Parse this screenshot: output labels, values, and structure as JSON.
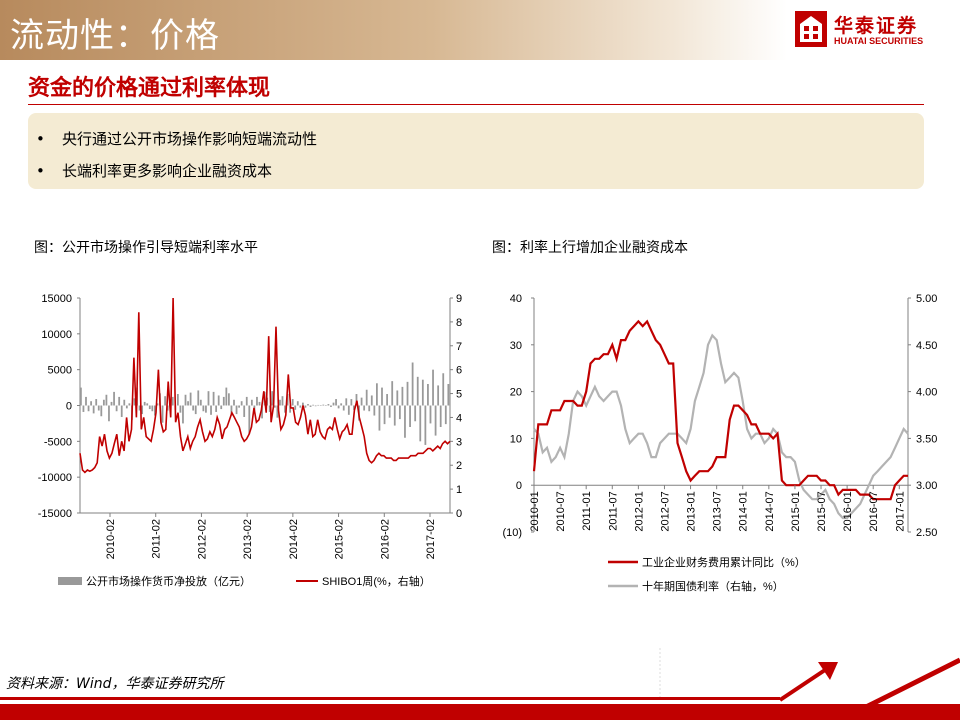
{
  "header": {
    "title": "流动性：价格"
  },
  "logo": {
    "name": "华泰证券",
    "sub": "HUATAI SECURITIES"
  },
  "section": {
    "heading": "资金的价格通过利率体现"
  },
  "bullets": [
    {
      "text": "央行通过公开市场操作影响短端流动性"
    },
    {
      "text": "长端利率更多影响企业融资成本"
    }
  ],
  "figures": [
    {
      "title": "图：公开市场操作引导短端利率水平"
    },
    {
      "title": "图：利率上行增加企业融资成本"
    }
  ],
  "footer": {
    "source": "资料来源：Wind，华泰证券研究所"
  },
  "colors": {
    "brand_red": "#c00000",
    "series_gray": "#999999",
    "series_light_gray": "#b3b3b3"
  },
  "chart_data": [
    {
      "type": "bar",
      "title": "图：公开市场操作引导短端利率水平",
      "x_ticks": [
        "2010-02",
        "2011-02",
        "2012-02",
        "2013-02",
        "2014-02",
        "2015-02",
        "2016-02",
        "2017-02"
      ],
      "ylim_left": [
        -15000,
        15000
      ],
      "yticks_left": [
        15000,
        10000,
        5000,
        0,
        -5000,
        -10000,
        -15000
      ],
      "ylim_right": [
        0,
        9
      ],
      "yticks_right": [
        9,
        8,
        7,
        6,
        5,
        4,
        3,
        2,
        1,
        0
      ],
      "series": [
        {
          "name": "公开市场操作货币净投放（亿元）",
          "type": "bar",
          "axis": "left",
          "color": "#999999",
          "values": [
            2500,
            -900,
            1200,
            -800,
            600,
            -1100,
            900,
            -700,
            -1500,
            800,
            1500,
            -2200,
            500,
            1900,
            -800,
            1200,
            -1600,
            800,
            -400,
            300,
            -2000,
            1000,
            2500,
            -700,
            -1200,
            500,
            300,
            -500,
            -800,
            -1400,
            300,
            1700,
            -2400,
            1300,
            -700,
            800,
            1200,
            -600,
            1600,
            -1000,
            -2500,
            1500,
            600,
            1800,
            -700,
            -1200,
            2100,
            800,
            -800,
            -1000,
            2000,
            -1300,
            1900,
            -900,
            1400,
            -500,
            1200,
            2500,
            1700,
            -1400,
            800,
            -1200,
            -300,
            600,
            -1600,
            1200,
            -4000,
            800,
            -700,
            1200,
            500,
            -1800,
            1900,
            1100,
            -900,
            2000,
            -300,
            -1700,
            800,
            1300,
            -1000,
            1600,
            -1000,
            900,
            -600,
            600,
            -300,
            400,
            -300,
            200,
            -200,
            100,
            -100,
            80,
            -60,
            120,
            60,
            200,
            -200,
            400,
            900,
            -400,
            300,
            -700,
            1000,
            -1300,
            900,
            -600,
            1600,
            -2100,
            1100,
            -700,
            2200,
            -800,
            1400,
            -1400,
            3100,
            -3500,
            2500,
            -2600,
            1600,
            -1700,
            3400,
            -2800,
            2100,
            -1900,
            2600,
            -4500,
            3300,
            -3000,
            6000,
            -2200,
            4000,
            -5000,
            3600,
            -5500,
            3000,
            -2500,
            5000,
            -4200,
            2800,
            -3000,
            4500,
            -2600,
            3000
          ]
        },
        {
          "name": "SHIBO1周(%，右轴）",
          "type": "line",
          "axis": "right",
          "color": "#c00000",
          "values": [
            2.5,
            1.8,
            1.7,
            1.8,
            1.75,
            1.8,
            1.9,
            2.1,
            3.2,
            2.8,
            3.3,
            2.6,
            2.3,
            2.5,
            2.9,
            3.3,
            2.4,
            3.0,
            2.6,
            4.0,
            3.0,
            3.5,
            6.5,
            4.0,
            8.4,
            3.5,
            4.0,
            3.2,
            3.1,
            3.0,
            3.5,
            4.2,
            6.0,
            3.8,
            3.4,
            3.5,
            5.5,
            4.0,
            9.0,
            3.8,
            4.2,
            3.2,
            2.6,
            2.9,
            3.2,
            2.7,
            3.0,
            3.2,
            3.6,
            3.9,
            3.4,
            3.0,
            3.1,
            3.4,
            3.2,
            3.5,
            4.0,
            3.7,
            3.1,
            3.5,
            3.6,
            3.9,
            4.2,
            4.0,
            3.8,
            3.6,
            3.2,
            3.0,
            3.1,
            3.3,
            3.6,
            4.4,
            3.8,
            3.9,
            4.3,
            5.1,
            4.2,
            7.4,
            3.8,
            4.5,
            7.8,
            4.3,
            3.5,
            3.7,
            4.1,
            5.8,
            4.4,
            4.4,
            3.8,
            3.7,
            4.0,
            4.5,
            4.1,
            3.3,
            3.9,
            3.2,
            3.3,
            3.9,
            3.4,
            3.2,
            3.1,
            3.5,
            3.6,
            3.5,
            4.0,
            3.5,
            3.1,
            3.4,
            3.5,
            3.7,
            3.3,
            3.3,
            4.3,
            4.7,
            4.0,
            3.6,
            3.2,
            2.5,
            2.2,
            2.1,
            2.2,
            2.4,
            2.5,
            2.4,
            2.4,
            2.3,
            2.3,
            2.3,
            2.2,
            2.2,
            2.3,
            2.3,
            2.3,
            2.3,
            2.3,
            2.4,
            2.4,
            2.4,
            2.5,
            2.5,
            2.5,
            2.6,
            2.7,
            2.7,
            2.6,
            2.7,
            2.8,
            2.7,
            2.9,
            3.0,
            2.9,
            3.0
          ]
        }
      ],
      "legend": "bottom",
      "grid": false
    },
    {
      "type": "line",
      "title": "图：利率上行增加企业融资成本",
      "x_ticks": [
        "2010-01",
        "2010-07",
        "2011-01",
        "2011-07",
        "2012-01",
        "2012-07",
        "2013-01",
        "2013-07",
        "2014-01",
        "2014-07",
        "2015-01",
        "2015-07",
        "2016-01",
        "2016-07",
        "2017-01"
      ],
      "ylim_left": [
        -10,
        40
      ],
      "yticks_left": [
        "40",
        "30",
        "20",
        "10",
        "0",
        "(10)"
      ],
      "ylim_right": [
        2.5,
        5.0
      ],
      "yticks_right": [
        "5.00",
        "4.50",
        "4.00",
        "3.50",
        "3.00",
        "2.50"
      ],
      "series": [
        {
          "name": "工业企业财务费用累计同比（%）",
          "axis": "left",
          "color": "#c00000",
          "x_months": [
            0,
            1,
            2,
            3,
            4,
            5,
            6,
            7,
            8,
            9,
            10,
            11,
            12,
            13,
            14,
            15,
            16,
            17,
            18,
            19,
            20,
            21,
            22,
            23,
            24,
            25,
            26,
            27,
            28,
            29,
            30,
            31,
            32,
            33,
            34,
            35,
            36,
            37,
            38,
            39,
            40,
            41,
            42,
            43,
            44,
            45,
            46,
            47,
            48,
            49,
            50,
            51,
            52,
            53,
            54,
            55,
            56,
            57,
            58,
            59,
            60,
            61,
            62,
            63,
            64,
            65,
            66,
            67,
            68,
            69,
            70,
            71,
            72,
            73,
            74,
            75,
            76,
            77,
            78,
            79,
            80,
            81,
            82,
            83,
            84,
            85,
            86
          ],
          "values": [
            3,
            13,
            13,
            13,
            16,
            16,
            16,
            18,
            18,
            18,
            17,
            17,
            20,
            26,
            27,
            27,
            28,
            28,
            30,
            27,
            31,
            31,
            33,
            34,
            35,
            34,
            35,
            33,
            31,
            30,
            28,
            26,
            26,
            9,
            6,
            3,
            1,
            2,
            3,
            3,
            3,
            4,
            6,
            6,
            6,
            14,
            17,
            17,
            16,
            15,
            13,
            13,
            11,
            11,
            11,
            10,
            11,
            1,
            0,
            0,
            0,
            0,
            1,
            2,
            2,
            2,
            1,
            1,
            0,
            0,
            -2,
            -1,
            -1,
            -1,
            -1,
            -2,
            -2,
            -2,
            -3,
            -3,
            -3,
            -3,
            -3,
            0,
            1,
            2,
            2
          ]
        },
        {
          "name": "十年期国债利率（右轴，%）",
          "axis": "right",
          "color": "#b3b3b3",
          "x_months": [
            0,
            1,
            2,
            3,
            4,
            5,
            6,
            7,
            8,
            9,
            10,
            11,
            12,
            13,
            14,
            15,
            16,
            17,
            18,
            19,
            20,
            21,
            22,
            23,
            24,
            25,
            26,
            27,
            28,
            29,
            30,
            31,
            32,
            33,
            34,
            35,
            36,
            37,
            38,
            39,
            40,
            41,
            42,
            43,
            44,
            45,
            46,
            47,
            48,
            49,
            50,
            51,
            52,
            53,
            54,
            55,
            56,
            57,
            58,
            59,
            60,
            61,
            62,
            63,
            64,
            65,
            66,
            67,
            68,
            69,
            70,
            71,
            72,
            73,
            74,
            75,
            76,
            77,
            78,
            79,
            80,
            81,
            82,
            83,
            84,
            85,
            86
          ],
          "values": [
            3.6,
            3.55,
            3.35,
            3.4,
            3.25,
            3.3,
            3.4,
            3.3,
            3.55,
            3.9,
            4.0,
            3.95,
            3.85,
            3.95,
            4.05,
            3.95,
            3.9,
            3.95,
            4.0,
            4.0,
            3.85,
            3.6,
            3.45,
            3.5,
            3.55,
            3.55,
            3.45,
            3.3,
            3.3,
            3.45,
            3.5,
            3.55,
            3.55,
            3.55,
            3.5,
            3.45,
            3.6,
            3.9,
            4.05,
            4.2,
            4.5,
            4.6,
            4.55,
            4.3,
            4.1,
            4.15,
            4.2,
            4.15,
            3.9,
            3.6,
            3.5,
            3.55,
            3.55,
            3.45,
            3.5,
            3.6,
            3.55,
            3.35,
            3.3,
            3.3,
            3.25,
            3.05,
            2.95,
            2.9,
            2.85,
            2.85,
            2.9,
            2.95,
            2.85,
            2.8,
            2.7,
            2.65,
            2.65,
            2.7,
            2.75,
            2.8,
            2.9,
            3.0,
            3.1,
            3.15,
            3.2,
            3.25,
            3.3,
            3.4,
            3.5,
            3.6,
            3.55
          ]
        }
      ],
      "legend": "bottom",
      "grid": false
    }
  ]
}
